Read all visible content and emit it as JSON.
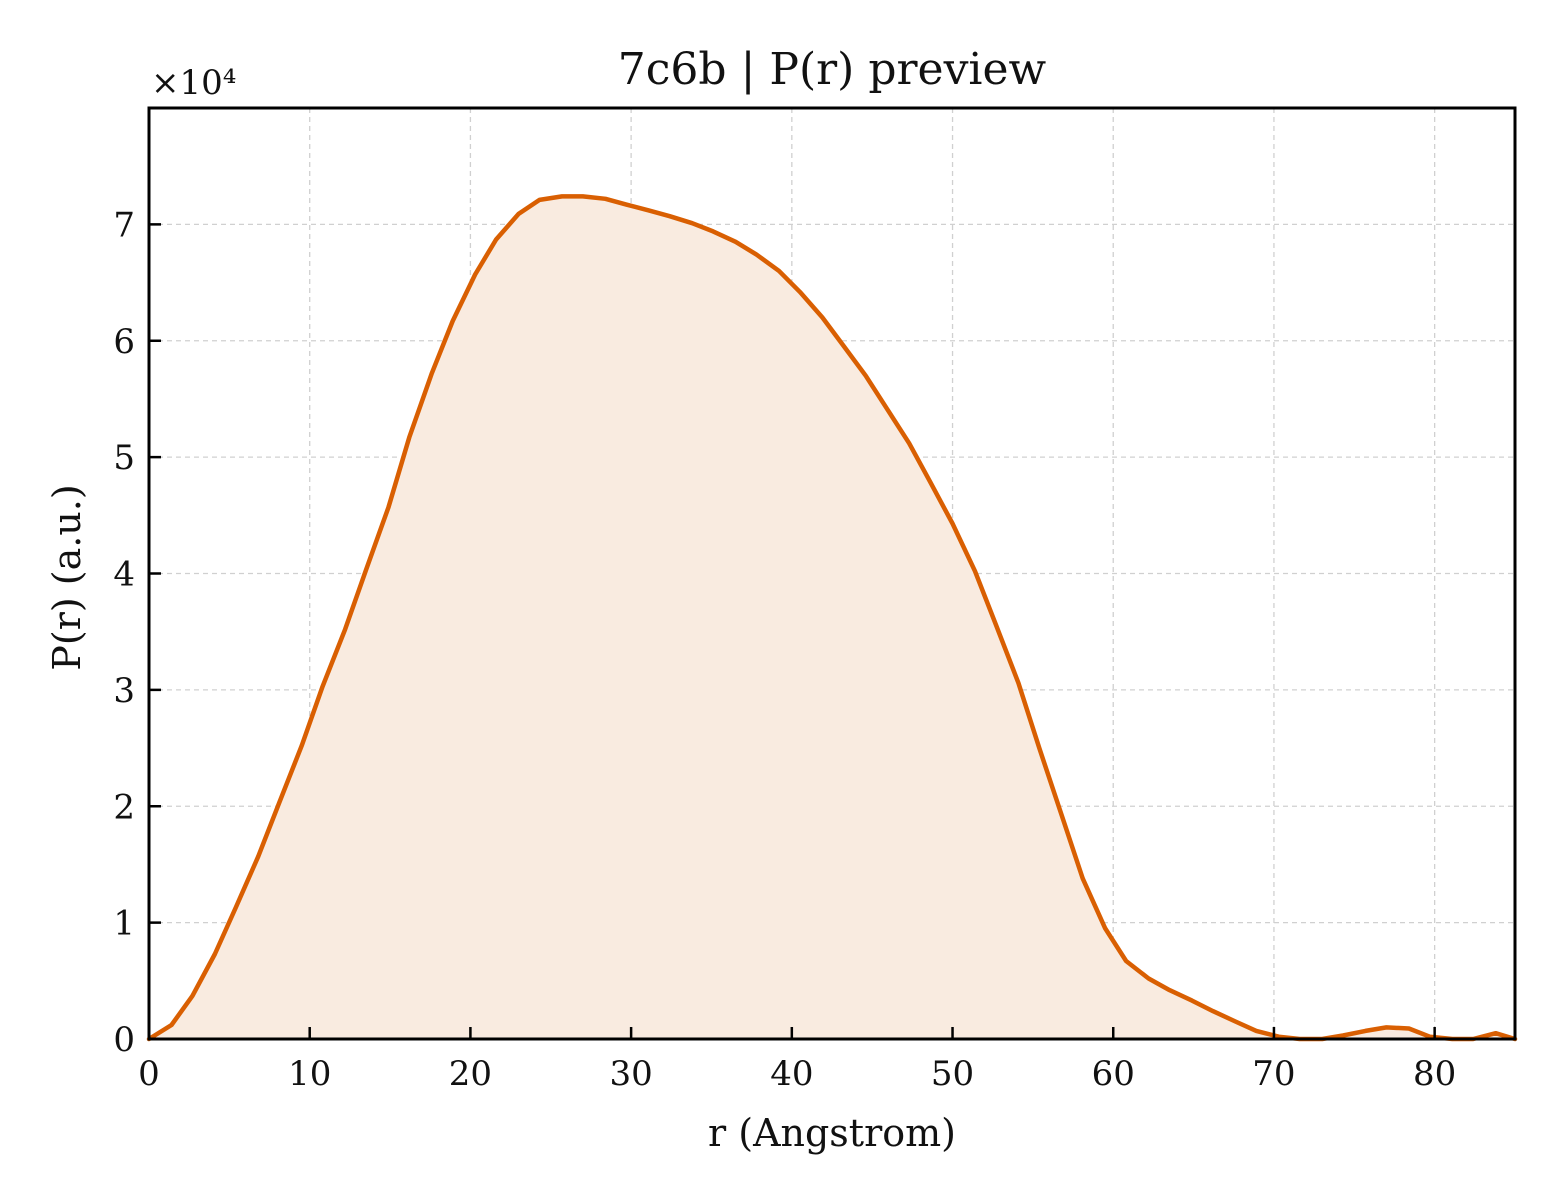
{
  "chart_data": {
    "type": "area",
    "title": "7c6b | P(r) preview",
    "xlabel": "r (Angstrom)",
    "ylabel": "P(r) (a.u.)",
    "y_offset_label": "×10⁴",
    "y_multiplier": 10000,
    "xlim": [
      0,
      85
    ],
    "ylim": [
      0,
      8
    ],
    "x_ticks": [
      "0",
      "10",
      "20",
      "30",
      "40",
      "50",
      "60",
      "70",
      "80"
    ],
    "y_ticks": [
      "0",
      "1",
      "2",
      "3",
      "4",
      "5",
      "6",
      "7"
    ],
    "grid": true,
    "legend": "none",
    "line_color": "#d95f02",
    "fill_color": "#f9ebe0",
    "series": [
      {
        "x": [
          0,
          1.4,
          2.7,
          4.1,
          5.4,
          6.8,
          8.1,
          9.5,
          10.8,
          12.2,
          13.5,
          14.9,
          16.2,
          17.6,
          18.9,
          20.3,
          21.6,
          23.0,
          24.3,
          25.7,
          27.0,
          28.4,
          29.7,
          31.1,
          32.4,
          33.8,
          35.1,
          36.5,
          37.8,
          39.2,
          40.5,
          41.9,
          43.2,
          44.6,
          45.9,
          47.3,
          48.6,
          50.0,
          51.4,
          52.7,
          54.1,
          55.4,
          56.8,
          58.1,
          59.5,
          60.8,
          62.2,
          63.5,
          64.9,
          66.2,
          67.6,
          68.9,
          70.3,
          71.6,
          73.0,
          74.3,
          75.7,
          77.0,
          78.4,
          79.7,
          81.1,
          82.4,
          83.8,
          85.0
        ],
        "y": [
          0,
          0.12,
          0.37,
          0.73,
          1.13,
          1.57,
          2.03,
          2.52,
          3.03,
          3.52,
          4.03,
          4.57,
          5.17,
          5.72,
          6.17,
          6.57,
          6.87,
          7.09,
          7.21,
          7.24,
          7.24,
          7.22,
          7.17,
          7.12,
          7.07,
          7.01,
          6.94,
          6.85,
          6.74,
          6.6,
          6.42,
          6.2,
          5.96,
          5.7,
          5.42,
          5.12,
          4.79,
          4.43,
          4.02,
          3.56,
          3.06,
          2.5,
          1.92,
          1.38,
          0.95,
          0.67,
          0.52,
          0.42,
          0.33,
          0.24,
          0.15,
          0.07,
          0.02,
          0,
          0,
          0.03,
          0.07,
          0.1,
          0.09,
          0.02,
          0,
          0,
          0.05,
          0
        ]
      }
    ]
  }
}
